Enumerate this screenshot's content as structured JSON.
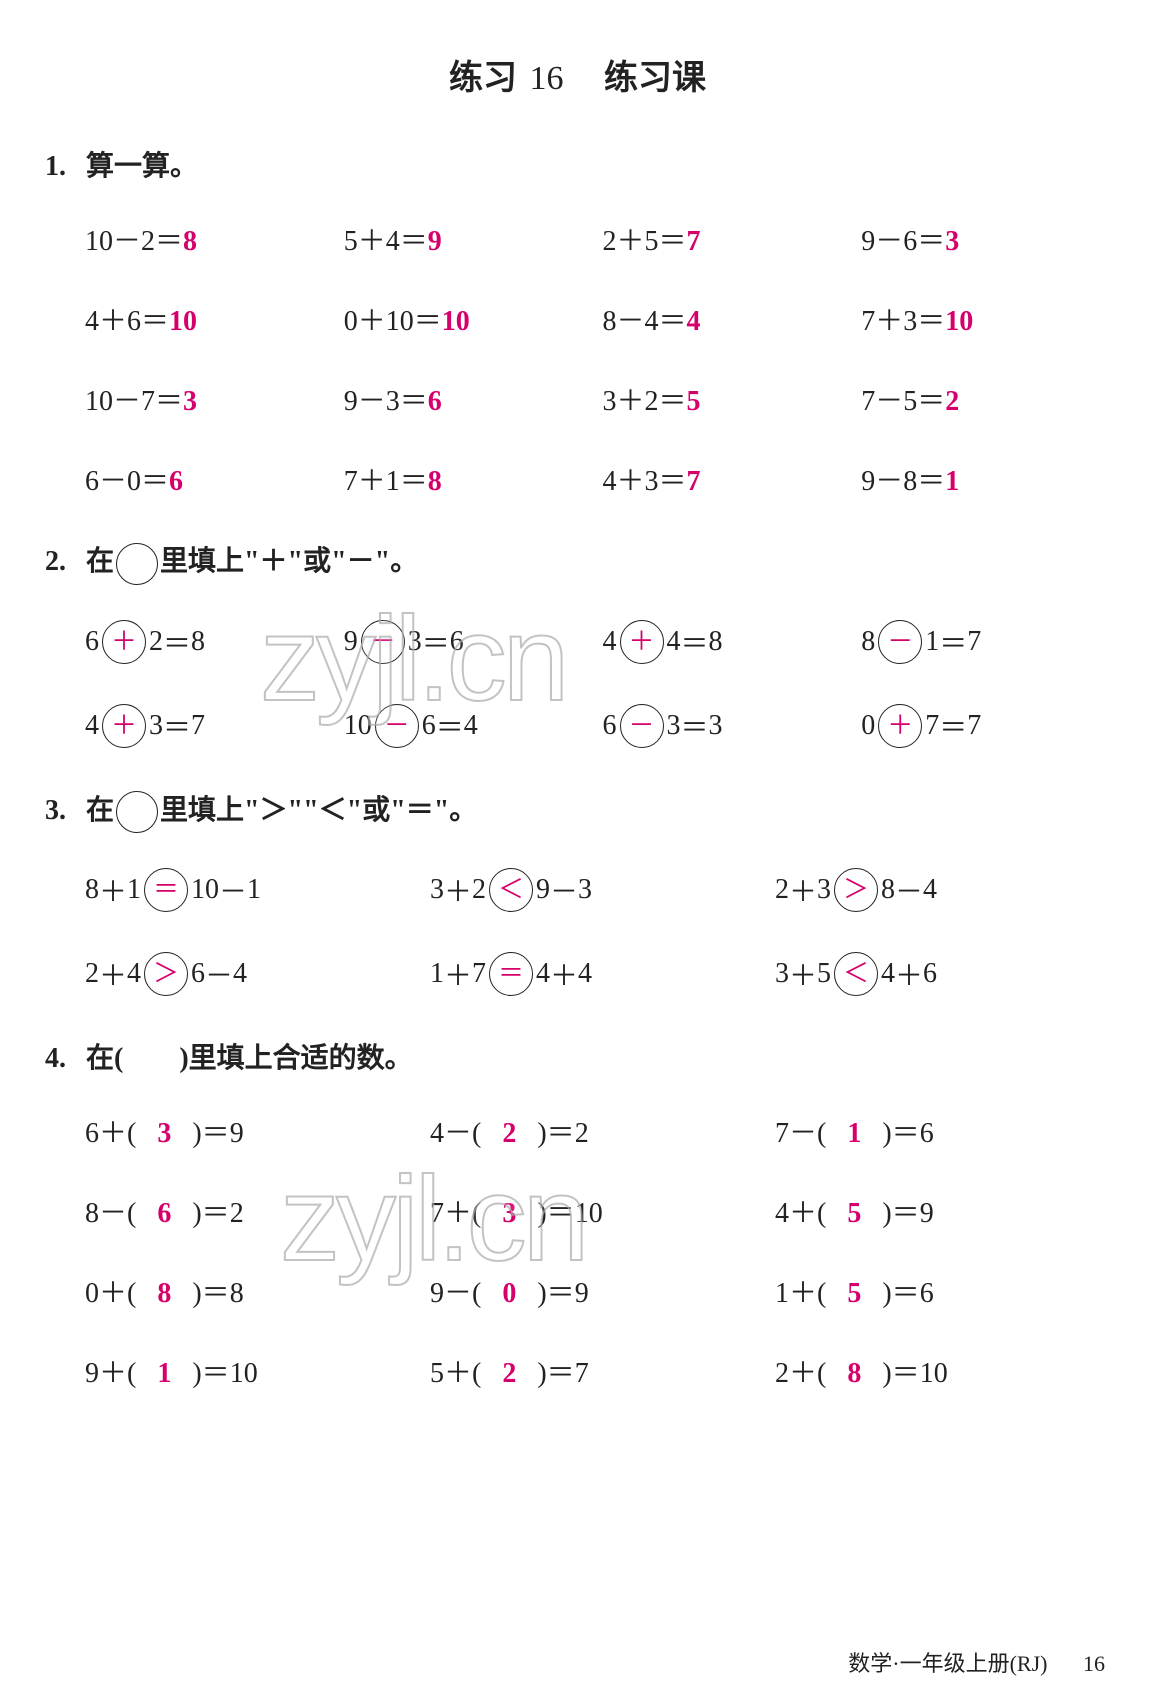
{
  "title_a": "练习",
  "title_num": "16",
  "title_b": "练习课",
  "colors": {
    "answer": "#d6006c",
    "text": "#222222",
    "bg": "#ffffff"
  },
  "fontsizes": {
    "title": 34,
    "heading": 28,
    "body": 28,
    "footer": 22,
    "watermark": 120
  },
  "watermark_text": "zyjl.cn",
  "q1": {
    "num": "1.",
    "title": "算一算。",
    "cells": [
      {
        "a": "10",
        "op": "－",
        "b": "2",
        "ans": "8"
      },
      {
        "a": "5",
        "op": "＋",
        "b": "4",
        "ans": "9"
      },
      {
        "a": "2",
        "op": "＋",
        "b": "5",
        "ans": "7"
      },
      {
        "a": "9",
        "op": "－",
        "b": "6",
        "ans": "3"
      },
      {
        "a": "4",
        "op": "＋",
        "b": "6",
        "ans": "10"
      },
      {
        "a": "0",
        "op": "＋",
        "b": "10",
        "ans": "10"
      },
      {
        "a": "8",
        "op": "－",
        "b": "4",
        "ans": "4"
      },
      {
        "a": "7",
        "op": "＋",
        "b": "3",
        "ans": "10"
      },
      {
        "a": "10",
        "op": "－",
        "b": "7",
        "ans": "3"
      },
      {
        "a": "9",
        "op": "－",
        "b": "3",
        "ans": "6"
      },
      {
        "a": "3",
        "op": "＋",
        "b": "2",
        "ans": "5"
      },
      {
        "a": "7",
        "op": "－",
        "b": "5",
        "ans": "2"
      },
      {
        "a": "6",
        "op": "－",
        "b": "0",
        "ans": "6"
      },
      {
        "a": "7",
        "op": "＋",
        "b": "1",
        "ans": "8"
      },
      {
        "a": "4",
        "op": "＋",
        "b": "3",
        "ans": "7"
      },
      {
        "a": "9",
        "op": "－",
        "b": "8",
        "ans": "1"
      }
    ]
  },
  "q2": {
    "num": "2.",
    "title_pre": "在",
    "title_post": "里填上\"＋\"或\"－\"。",
    "cells": [
      {
        "a": "6",
        "ans": "＋",
        "b": "2",
        "eq": "＝",
        "r": "8"
      },
      {
        "a": "9",
        "ans": "－",
        "b": "3",
        "eq": "＝",
        "r": "6"
      },
      {
        "a": "4",
        "ans": "＋",
        "b": "4",
        "eq": "＝",
        "r": "8"
      },
      {
        "a": "8",
        "ans": "－",
        "b": "1",
        "eq": "＝",
        "r": "7"
      },
      {
        "a": "4",
        "ans": "＋",
        "b": "3",
        "eq": "＝",
        "r": "7"
      },
      {
        "a": "10",
        "ans": "－",
        "b": "6",
        "eq": "＝",
        "r": "4"
      },
      {
        "a": "6",
        "ans": "－",
        "b": "3",
        "eq": "＝",
        "r": "3"
      },
      {
        "a": "0",
        "ans": "＋",
        "b": "7",
        "eq": "＝",
        "r": "7"
      }
    ]
  },
  "q3": {
    "num": "3.",
    "title_pre": "在",
    "title_post": "里填上\"＞\"\"＜\"或\"＝\"。",
    "cells": [
      {
        "la": "8",
        "lop": "＋",
        "lb": "1",
        "ans": "＝",
        "ra": "10",
        "rop": "－",
        "rb": "1"
      },
      {
        "la": "3",
        "lop": "＋",
        "lb": "2",
        "ans": "＜",
        "ra": "9",
        "rop": "－",
        "rb": "3"
      },
      {
        "la": "2",
        "lop": "＋",
        "lb": "3",
        "ans": "＞",
        "ra": "8",
        "rop": "－",
        "rb": "4"
      },
      {
        "la": "2",
        "lop": "＋",
        "lb": "4",
        "ans": "＞",
        "ra": "6",
        "rop": "－",
        "rb": "4"
      },
      {
        "la": "1",
        "lop": "＋",
        "lb": "7",
        "ans": "＝",
        "ra": "4",
        "rop": "＋",
        "rb": "4"
      },
      {
        "la": "3",
        "lop": "＋",
        "lb": "5",
        "ans": "＜",
        "ra": "4",
        "rop": "＋",
        "rb": "6"
      }
    ]
  },
  "q4": {
    "num": "4.",
    "title": "在(　　)里填上合适的数。",
    "cells": [
      {
        "a": "6",
        "op": "＋",
        "ans": "3",
        "r": "9"
      },
      {
        "a": "4",
        "op": "－",
        "ans": "2",
        "r": "2"
      },
      {
        "a": "7",
        "op": "－",
        "ans": "1",
        "r": "6"
      },
      {
        "a": "8",
        "op": "－",
        "ans": "6",
        "r": "2"
      },
      {
        "a": "7",
        "op": "＋",
        "ans": "3",
        "r": "10"
      },
      {
        "a": "4",
        "op": "＋",
        "ans": "5",
        "r": "9"
      },
      {
        "a": "0",
        "op": "＋",
        "ans": "8",
        "r": "8"
      },
      {
        "a": "9",
        "op": "－",
        "ans": "0",
        "r": "9"
      },
      {
        "a": "1",
        "op": "＋",
        "ans": "5",
        "r": "6"
      },
      {
        "a": "9",
        "op": "＋",
        "ans": "1",
        "r": "10"
      },
      {
        "a": "5",
        "op": "＋",
        "ans": "2",
        "r": "7"
      },
      {
        "a": "2",
        "op": "＋",
        "ans": "8",
        "r": "10"
      }
    ]
  },
  "footer": {
    "text": "数学·一年级上册(RJ)",
    "page": "16"
  }
}
